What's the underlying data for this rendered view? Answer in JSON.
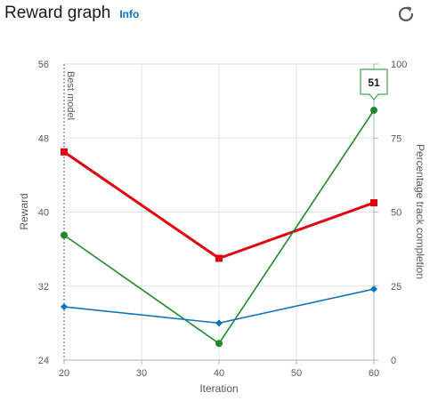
{
  "header": {
    "title": "Reward graph",
    "info_label": "Info",
    "refresh_icon": "refresh-icon"
  },
  "colors": {
    "red": "#e00010",
    "green": "#1d8a2a",
    "blue": "#0f73b8",
    "grid": "#e3e3e3",
    "axis": "#aab7b8"
  },
  "chart_data": {
    "type": "line",
    "x": [
      20,
      40,
      60
    ],
    "xticks": [
      20,
      30,
      40,
      50,
      60
    ],
    "xlim": [
      20,
      60
    ],
    "xlabel": "Iteration",
    "ylabel": "Reward",
    "ylim": [
      24,
      56
    ],
    "yticks": [
      24,
      32,
      40,
      48,
      56
    ],
    "y2label": "Percentage track completion",
    "y2lim": [
      0,
      100
    ],
    "y2ticks": [
      0,
      25,
      50,
      75,
      100
    ],
    "grid": true,
    "annotation": {
      "text": "Best model",
      "x": 20
    },
    "tooltip": {
      "text": "51",
      "series": 1,
      "index": 2
    },
    "series": [
      {
        "color": "#e00010",
        "marker": "square",
        "axis": "left",
        "values": [
          46.5,
          35,
          41
        ]
      },
      {
        "color": "#1d8a2a",
        "marker": "circle",
        "axis": "left",
        "values": [
          37.5,
          25.8,
          51
        ]
      },
      {
        "color": "#0f73b8",
        "marker": "diamond",
        "axis": "right",
        "values": [
          18,
          12.5,
          24
        ]
      }
    ]
  }
}
